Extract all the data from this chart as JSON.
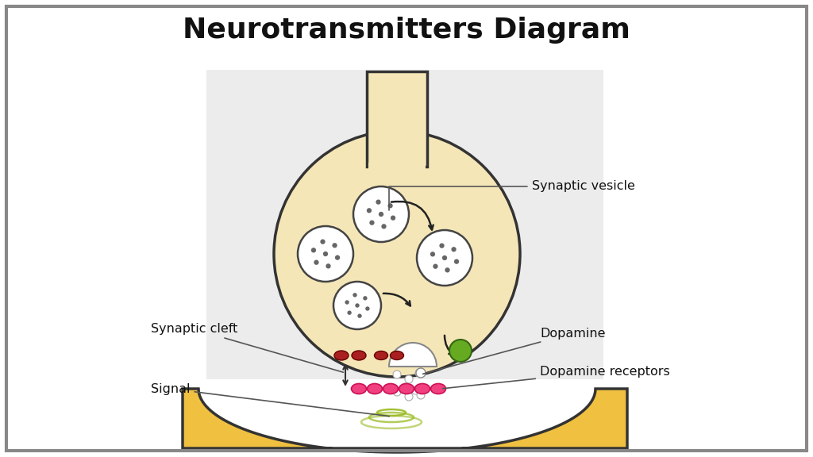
{
  "title": "Neurotransmitters Diagram",
  "title_fontsize": 26,
  "title_fontweight": "bold",
  "bg_color": "#ffffff",
  "outer_border_color": "#555555",
  "neuron_fill": "#f5e6b8",
  "neuron_edge": "#333333",
  "post_fill": "#f0c040",
  "post_edge": "#333333",
  "vesicle_fill": "#ffffff",
  "vesicle_edge": "#333333",
  "receptor_pink": "#f04080",
  "receptor_dark_red": "#aa2020",
  "dopamine_green": "#66aa22",
  "dot_color": "#555555",
  "signal_color": "#99bb22",
  "label_fontsize": 11.5,
  "labels": {
    "synaptic_vesicle": "Synaptic vesicle",
    "synaptic_cleft": "Synaptic cleft",
    "dopamine": "Dopamine",
    "signal": "Signal",
    "dopamine_receptors": "Dopamine receptors"
  },
  "watermark_color": "#dddddd",
  "watermark_alpha": 0.55
}
